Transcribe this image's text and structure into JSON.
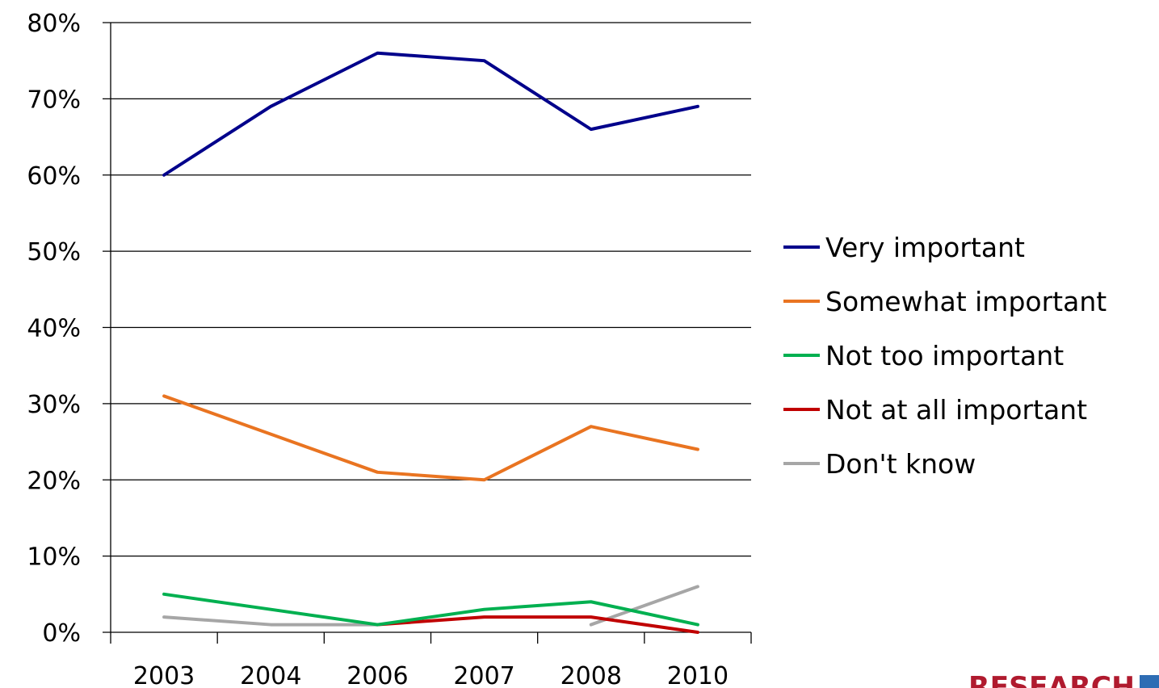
{
  "chart_data": {
    "type": "line",
    "categories": [
      "2003",
      "2004",
      "2006",
      "2007",
      "2008",
      "2010"
    ],
    "y_ticks": [
      "0%",
      "10%",
      "20%",
      "30%",
      "40%",
      "50%",
      "60%",
      "70%",
      "80%"
    ],
    "ylim": [
      0,
      80
    ],
    "y_unit": "%",
    "grid": true,
    "legend_position": "right",
    "series": [
      {
        "name": "Very important",
        "color": "#00008b",
        "values": [
          60,
          69,
          76,
          75,
          66,
          69
        ]
      },
      {
        "name": "Somewhat important",
        "color": "#e97421",
        "values": [
          31,
          26,
          21,
          20,
          27,
          24
        ]
      },
      {
        "name": "Not too important",
        "color": "#00b050",
        "values": [
          5,
          3,
          1,
          3,
          4,
          1
        ]
      },
      {
        "name": "Not at all important",
        "color": "#c00000",
        "values": [
          null,
          null,
          1,
          2,
          2,
          0
        ]
      },
      {
        "name": "Don't know",
        "color": "#a6a6a6",
        "values": [
          2,
          1,
          1,
          null,
          1,
          6
        ]
      }
    ]
  },
  "logo": {
    "text": "RESEARCH",
    "color": "#b01a2e",
    "accent_color": "#2e6db4"
  }
}
